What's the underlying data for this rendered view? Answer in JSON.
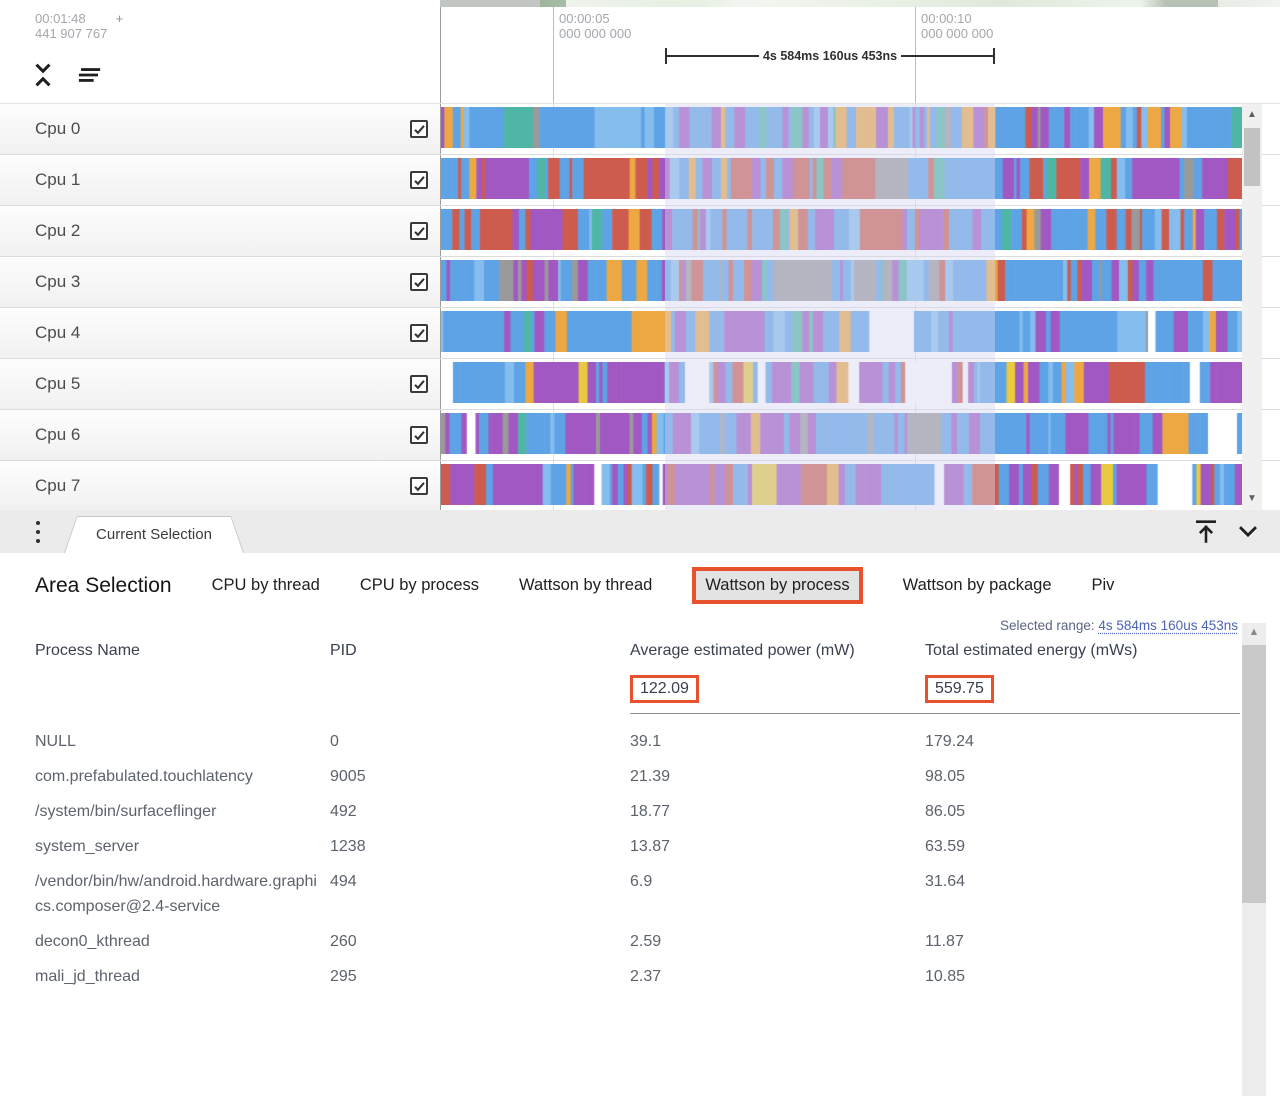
{
  "timeline": {
    "left_time": "00:01:48",
    "left_plus": "+",
    "left_ns": "441 907 767",
    "ticks": [
      {
        "time": "00:00:05",
        "ns": "000 000 000"
      },
      {
        "time": "00:00:10",
        "ns": "000 000 000"
      }
    ],
    "range_label": "4s 584ms 160us 453ns"
  },
  "tracks": {
    "cpus": [
      {
        "name": "Cpu 0",
        "checked": true,
        "seed": 101,
        "palette": [
          [
            "#5ea3e6",
            40
          ],
          [
            "#85bdee",
            8
          ],
          [
            "#a258c2",
            18
          ],
          [
            "#eda843",
            14
          ],
          [
            "#4fb6a5",
            7
          ],
          [
            "#cd5c4e",
            5
          ],
          [
            "#9a9a9a",
            4
          ],
          [
            "#7cc87c",
            4
          ]
        ]
      },
      {
        "name": "Cpu 1",
        "checked": true,
        "seed": 202,
        "palette": [
          [
            "#5ea3e6",
            40
          ],
          [
            "#cd5c4e",
            28
          ],
          [
            "#a258c2",
            16
          ],
          [
            "#85bdee",
            6
          ],
          [
            "#eda843",
            5
          ],
          [
            "#4fb6a5",
            3
          ],
          [
            "#9a9a9a",
            2
          ]
        ]
      },
      {
        "name": "Cpu 2",
        "checked": true,
        "seed": 303,
        "palette": [
          [
            "#5ea3e6",
            42
          ],
          [
            "#cd5c4e",
            26
          ],
          [
            "#a258c2",
            12
          ],
          [
            "#85bdee",
            8
          ],
          [
            "#eda843",
            5
          ],
          [
            "#4fb6a5",
            4
          ],
          [
            "#9a9a9a",
            3
          ]
        ]
      },
      {
        "name": "Cpu 3",
        "checked": true,
        "seed": 404,
        "palette": [
          [
            "#5ea3e6",
            48
          ],
          [
            "#85bdee",
            10
          ],
          [
            "#a258c2",
            14
          ],
          [
            "#cd5c4e",
            8
          ],
          [
            "#9a9a9a",
            10
          ],
          [
            "#4fb6a5",
            5
          ],
          [
            "#eda843",
            5
          ]
        ]
      },
      {
        "name": "Cpu 4",
        "checked": true,
        "seed": 505,
        "palette": [
          [
            "#5ea3e6",
            52
          ],
          [
            "#85bdee",
            10
          ],
          [
            "#a258c2",
            22
          ],
          [
            "#ffffff",
            6
          ],
          [
            "#4fb6a5",
            4
          ],
          [
            "#eda843",
            4
          ],
          [
            "#9a9a9a",
            2
          ]
        ]
      },
      {
        "name": "Cpu 5",
        "checked": true,
        "seed": 606,
        "palette": [
          [
            "#5ea3e6",
            38
          ],
          [
            "#a258c2",
            30
          ],
          [
            "#85bdee",
            6
          ],
          [
            "#cd5c4e",
            8
          ],
          [
            "#ffffff",
            8
          ],
          [
            "#eda843",
            4
          ],
          [
            "#e8c93f",
            3
          ],
          [
            "#4fb6a5",
            3
          ]
        ]
      },
      {
        "name": "Cpu 6",
        "checked": true,
        "seed": 707,
        "palette": [
          [
            "#a258c2",
            46
          ],
          [
            "#5ea3e6",
            30
          ],
          [
            "#85bdee",
            6
          ],
          [
            "#9a9a9a",
            8
          ],
          [
            "#4fb6a5",
            4
          ],
          [
            "#eda843",
            4
          ],
          [
            "#ffffff",
            2
          ]
        ]
      },
      {
        "name": "Cpu 7",
        "checked": true,
        "seed": 808,
        "palette": [
          [
            "#a258c2",
            36
          ],
          [
            "#5ea3e6",
            30
          ],
          [
            "#85bdee",
            6
          ],
          [
            "#cd5c4e",
            14
          ],
          [
            "#ffffff",
            6
          ],
          [
            "#eda843",
            4
          ],
          [
            "#e8c93f",
            4
          ]
        ]
      }
    ]
  },
  "tab_bar": {
    "tab_label": "Current Selection"
  },
  "selection_panel": {
    "title": "Area Selection",
    "tabs": [
      "CPU by thread",
      "CPU by process",
      "Wattson by thread",
      "Wattson by process",
      "Wattson by package",
      "Piv"
    ],
    "active_tab": "Wattson by process",
    "selected_range": {
      "label": "Selected range:",
      "value": "4s 584ms 160us 453ns"
    },
    "table": {
      "columns": [
        "Process Name",
        "PID",
        "Average estimated power (mW)",
        "Total estimated energy (mWs)"
      ],
      "totals": {
        "power": "122.09",
        "energy": "559.75"
      },
      "rows": [
        {
          "name": "NULL",
          "pid": "0",
          "power": "39.1",
          "energy": "179.24"
        },
        {
          "name": "com.prefabulated.touchlatency",
          "pid": "9005",
          "power": "21.39",
          "energy": "98.05"
        },
        {
          "name": "/system/bin/surfaceflinger",
          "pid": "492",
          "power": "18.77",
          "energy": "86.05"
        },
        {
          "name": "system_server",
          "pid": "1238",
          "power": "13.87",
          "energy": "63.59"
        },
        {
          "name": "/vendor/bin/hw/android.hardware.graphics.composer@2.4-service",
          "pid": "494",
          "power": "6.9",
          "energy": "31.64"
        },
        {
          "name": "decon0_kthread",
          "pid": "260",
          "power": "2.59",
          "energy": "11.87"
        },
        {
          "name": "mali_jd_thread",
          "pid": "295",
          "power": "2.37",
          "energy": "10.85"
        }
      ]
    }
  },
  "icons": {
    "unfold_less": "collapse-chevrons",
    "clear_all": "three-staggered-lines",
    "kebab_menu": "vertical-dots",
    "vertical_align_top": "arrow-up-to-bar",
    "chevron_down": "v",
    "scroll_up": "▲",
    "scroll_down": "▼",
    "checkbox_check": "✓"
  },
  "colors": {
    "annotation_highlight": "#e8512d",
    "selection_overlay": "rgba(213,216,240,0.45)",
    "link_blue": "#4c63b6",
    "track_blue": "#5ea3e6",
    "track_purple": "#a258c2",
    "track_orange": "#eda843",
    "track_red": "#cd5c4e",
    "track_teal": "#4fb6a5"
  }
}
